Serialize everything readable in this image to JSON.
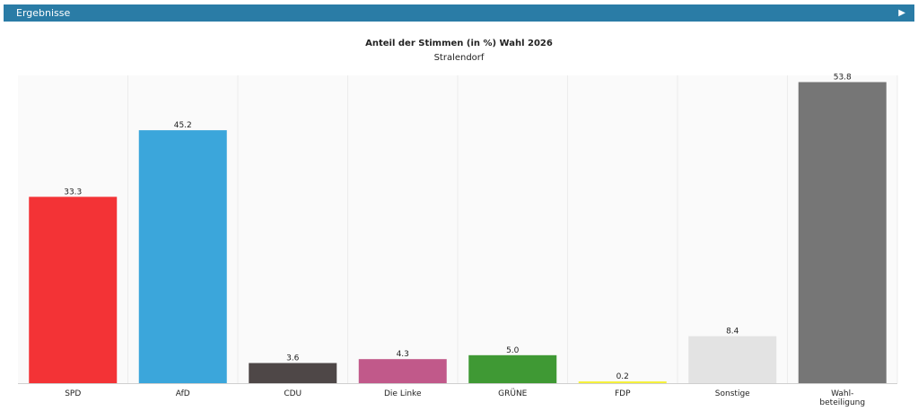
{
  "header": {
    "title": "Ergebnisse",
    "toggle_icon": "play-arrow-icon",
    "toggle_glyph": "▶",
    "background": "#2a7ca6"
  },
  "chart_data": {
    "type": "bar",
    "title": "Anteil der Stimmen (in %) Wahl 2026",
    "subtitle": "Stralendorf",
    "xlabel": "",
    "ylabel": "",
    "ylim": [
      0,
      55
    ],
    "grid": false,
    "categories": [
      {
        "label": "SPD",
        "lines": [
          "SPD"
        ],
        "value": 33.3,
        "display": "33.3",
        "color": "#f33336"
      },
      {
        "label": "AfD",
        "lines": [
          "AfD"
        ],
        "value": 45.2,
        "display": "45.2",
        "color": "#3ba6db"
      },
      {
        "label": "CDU",
        "lines": [
          "CDU"
        ],
        "value": 3.6,
        "display": "3.6",
        "color": "#4e4747"
      },
      {
        "label": "Die Linke",
        "lines": [
          "Die Linke"
        ],
        "value": 4.3,
        "display": "4.3",
        "color": "#c1598a"
      },
      {
        "label": "GRÜNE",
        "lines": [
          "GRÜNE"
        ],
        "value": 5.0,
        "display": "5.0",
        "color": "#3f9934"
      },
      {
        "label": "FDP",
        "lines": [
          "FDP"
        ],
        "value": 0.2,
        "display": "0.2",
        "color": "#f5f03c"
      },
      {
        "label": "Sonstige",
        "lines": [
          "Sonstige"
        ],
        "value": 8.4,
        "display": "8.4",
        "color": "#e3e3e3"
      },
      {
        "label": "Wahl-beteiligung",
        "lines": [
          "Wahl-",
          "beteiligung"
        ],
        "value": 53.8,
        "display": "53.8",
        "color": "#767676"
      }
    ],
    "column_background": "#fafafa"
  }
}
